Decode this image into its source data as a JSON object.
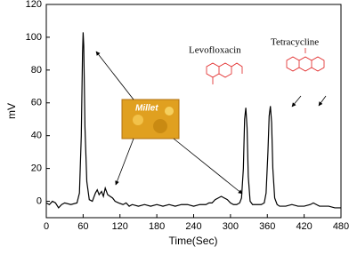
{
  "chart_data": {
    "type": "line",
    "x_label": "Time(Sec)",
    "y_label": "mV",
    "xlim": [
      0,
      480
    ],
    "xticks": [
      0,
      60,
      120,
      180,
      240,
      300,
      360,
      420,
      480
    ],
    "ylim": [
      -10,
      120
    ],
    "yticks": [
      0,
      20,
      40,
      60,
      80,
      100,
      120
    ],
    "annotations": {
      "image": "Millet",
      "peak1": "Levofloxacin",
      "peak2": "Tetracycline"
    },
    "series": [
      {
        "color": "#000000",
        "x": [
          0,
          5,
          10,
          15,
          20,
          25,
          30,
          40,
          50,
          54,
          57,
          59,
          60,
          61,
          63,
          66,
          70,
          75,
          80,
          83,
          86,
          90,
          93,
          96,
          100,
          104,
          108,
          112,
          118,
          125,
          130,
          135,
          140,
          150,
          160,
          170,
          180,
          190,
          200,
          210,
          220,
          230,
          240,
          250,
          260,
          265,
          270,
          275,
          280,
          285,
          290,
          295,
          300,
          305,
          310,
          315,
          318,
          321,
          323,
          325,
          327,
          329,
          332,
          336,
          340,
          345,
          350,
          355,
          358,
          361,
          363,
          365,
          367,
          369,
          372,
          376,
          380,
          390,
          400,
          410,
          420,
          430,
          435,
          440,
          445,
          450,
          460,
          470,
          480
        ],
        "values": [
          -1,
          -2,
          0,
          -1,
          -4,
          -2,
          -1,
          -2,
          -1,
          5,
          40,
          90,
          103,
          95,
          45,
          12,
          1,
          0,
          5,
          7,
          4,
          6,
          3,
          8,
          4,
          3,
          2,
          0,
          -1,
          -2,
          -1,
          -3,
          -2,
          -3,
          -2,
          -3,
          -2,
          -3,
          -2,
          -3,
          -2,
          -2,
          -3,
          -2,
          -2,
          -1,
          -1,
          1,
          2,
          3,
          2,
          1,
          -1,
          -2,
          -2,
          -1,
          2,
          20,
          50,
          57,
          45,
          15,
          0,
          -2,
          -2,
          -2,
          -2,
          -1,
          5,
          30,
          52,
          58,
          48,
          20,
          2,
          -2,
          -3,
          -3,
          -2,
          -3,
          -3,
          -2,
          -1,
          -2,
          -3,
          -3,
          -3,
          -4,
          -4
        ]
      }
    ]
  }
}
